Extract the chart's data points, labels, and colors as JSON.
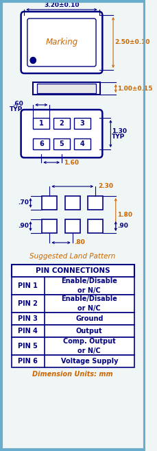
{
  "bg_color": "#f0f5f5",
  "border_color": "#6aaccc",
  "line_color": "#000080",
  "dim_color": "#000080",
  "text_color": "#000080",
  "orange_color": "#cc6600",
  "red_color": "#cc0000",
  "pin_table": {
    "header": "PIN CONNECTIONS",
    "rows": [
      [
        "PIN 1",
        "Enable/Disable\nor N/C"
      ],
      [
        "PIN 2",
        "Enable/Disable\nor N/C"
      ],
      [
        "PIN 3",
        "Ground"
      ],
      [
        "PIN 4",
        "Output"
      ],
      [
        "PIN 5",
        "Comp. Output\nor N/C"
      ],
      [
        "PIN 6",
        "Voltage Supply"
      ]
    ]
  },
  "dim_labels": {
    "top_width": "3.20±0.10",
    "top_height": "2.50±0.10",
    "side_height": "1.00±0.15",
    "pin_pitch": ".60",
    "pin_pitch2": "TYP",
    "pin_height": "1.30",
    "pin_height2": "TYP",
    "pin_bottom": "1.60",
    "land_width": "2.30",
    "land_left": ".70",
    "land_right": "1.80",
    "land_pad_w": ".90",
    "land_pad_w2": ".90",
    "land_gap": ".80"
  },
  "suggested_land": "Suggested Land Pattern",
  "dim_units": "Dimension Units: mm"
}
